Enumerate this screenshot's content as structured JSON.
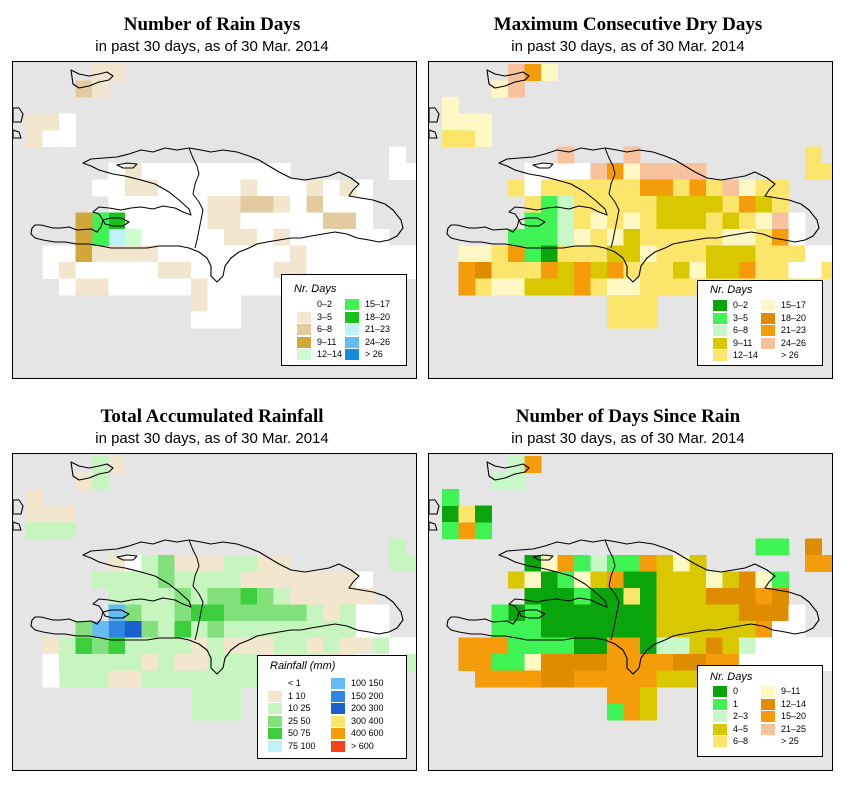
{
  "panels": [
    {
      "title": "Number of Rain Days",
      "subtitle": "in past 30 days, as of  30 Mar. 2014",
      "legend": {
        "title": "Nr. Days",
        "items": [
          {
            "label": "0–2",
            "color": "#ffffff"
          },
          {
            "label": "3–5",
            "color": "#f2e6cf"
          },
          {
            "label": "6–8",
            "color": "#e2cb9e"
          },
          {
            "label": "9–11",
            "color": "#d2a73a"
          },
          {
            "label": "12–14",
            "color": "#cdfccf"
          },
          {
            "label": "15–17",
            "color": "#3ef353"
          },
          {
            "label": "18–20",
            "color": "#1cc01c"
          },
          {
            "label": "21–23",
            "color": "#bdf2fb"
          },
          {
            "label": "24–26",
            "color": "#64bdf2"
          },
          {
            "label": "> 26",
            "color": "#148ce0"
          }
        ]
      }
    },
    {
      "title": "Maximum Consecutive Dry Days",
      "subtitle": "in past 30 days, as of  30 Mar. 2014",
      "legend": {
        "title": "Nr. Days",
        "items": [
          {
            "label": "0–2",
            "color": "#0aa50a"
          },
          {
            "label": "3–5",
            "color": "#3ef353"
          },
          {
            "label": "6–8",
            "color": "#c8f8c8"
          },
          {
            "label": "9–11",
            "color": "#d9c800"
          },
          {
            "label": "12–14",
            "color": "#fbe66b"
          },
          {
            "label": "15–17",
            "color": "#fdf8c4"
          },
          {
            "label": "18–20",
            "color": "#e08c00"
          },
          {
            "label": "21–23",
            "color": "#f59c0a"
          },
          {
            "label": "24–26",
            "color": "#f8c39c"
          },
          {
            "label": "> 26",
            "color": "#ffffff"
          }
        ]
      }
    },
    {
      "title": "Total Accumulated Rainfall",
      "subtitle": "in past 30 days, as of  30 Mar. 2014",
      "legend": {
        "title": "Rainfall (mm)",
        "items": [
          {
            "label": "< 1",
            "color": "#ffffff"
          },
          {
            "label": "1    10",
            "color": "#f2e6cf"
          },
          {
            "label": "10    25",
            "color": "#c7f5c0"
          },
          {
            "label": "25    50",
            "color": "#82e07d"
          },
          {
            "label": "50    75",
            "color": "#3ccf3c"
          },
          {
            "label": "75   100",
            "color": "#bdf2fb"
          },
          {
            "label": "100  150",
            "color": "#64bdf2"
          },
          {
            "label": "150  200",
            "color": "#2e86e0"
          },
          {
            "label": "200  300",
            "color": "#1a5fcf"
          },
          {
            "label": "300  400",
            "color": "#fbe66b"
          },
          {
            "label": "400  600",
            "color": "#f59c0a"
          },
          {
            "label": "> 600",
            "color": "#f5401a"
          }
        ]
      }
    },
    {
      "title": "Number of Days Since Rain",
      "subtitle": "in past 30 days, as of  30 Mar. 2014",
      "legend": {
        "title": "Nr. Days",
        "items": [
          {
            "label": "0",
            "color": "#0aa50a"
          },
          {
            "label": "1",
            "color": "#3ef353"
          },
          {
            "label": "2–3",
            "color": "#c8f8c8"
          },
          {
            "label": "4–5",
            "color": "#d9c800"
          },
          {
            "label": "6–8",
            "color": "#fbe66b"
          },
          {
            "label": "9–11",
            "color": "#fdf8c4"
          },
          {
            "label": "12–14",
            "color": "#e08c00"
          },
          {
            "label": "15–20",
            "color": "#f59c0a"
          },
          {
            "label": "21–25",
            "color": "#f8c39c"
          },
          {
            "label": "> 25",
            "color": "#ffffff"
          }
        ]
      }
    }
  ]
}
